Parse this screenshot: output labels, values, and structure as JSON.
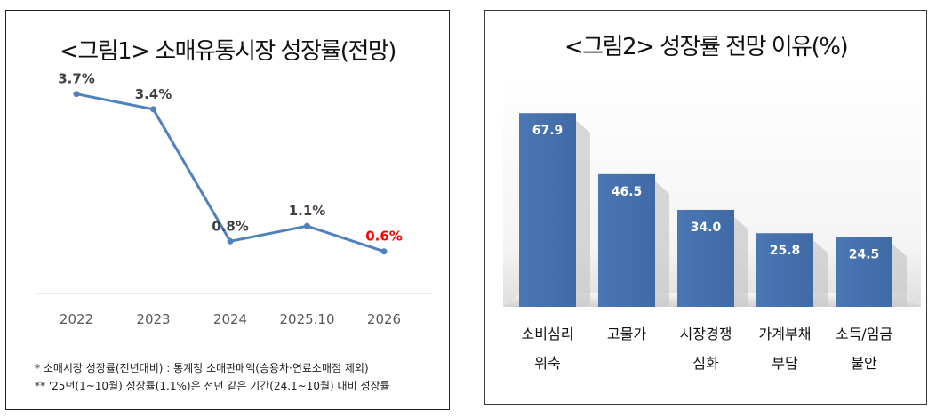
{
  "colors": {
    "line": "#4f81bd",
    "bar": "#4a77b5",
    "bar_highlight": "#6a95cf",
    "label": "#404040",
    "highlight_label": "#ff0000",
    "axis": "#d9d9d9"
  },
  "chart_data": [
    {
      "type": "line",
      "title": "<그림1> 소매유통시장 성장률(전망)",
      "categories": [
        "2022",
        "2023",
        "2024",
        "2025.10",
        "2026"
      ],
      "values": [
        3.7,
        3.4,
        0.8,
        1.1,
        0.6
      ],
      "data_labels": [
        "3.7%",
        "3.4%",
        "0.8%",
        "1.1%",
        "0.6%"
      ],
      "highlight_index": 4,
      "ylim": [
        0,
        4.5
      ],
      "grid": false,
      "notes": [
        "* 소매시장 성장률(전년대비) : 통계청 소매판매액(승용차·연료소매점 제외)",
        "** '25년(1~10월) 성장률(1.1%)은 전년 같은 기간(24.1~10월) 대비 성장률"
      ]
    },
    {
      "type": "bar",
      "title": "<그림2> 성장률 전망 이유(%)",
      "categories": [
        [
          "소비심리",
          "위축"
        ],
        [
          "고물가",
          ""
        ],
        [
          "시장경쟁",
          "심화"
        ],
        [
          "가계부채",
          "부담"
        ],
        [
          "소득/임금",
          "불안"
        ]
      ],
      "values": [
        67.9,
        46.5,
        34.0,
        25.8,
        24.5
      ],
      "data_labels": [
        "67.9",
        "46.5",
        "34.0",
        "25.8",
        "24.5"
      ],
      "ylim": [
        0,
        80
      ],
      "grid": false
    }
  ]
}
